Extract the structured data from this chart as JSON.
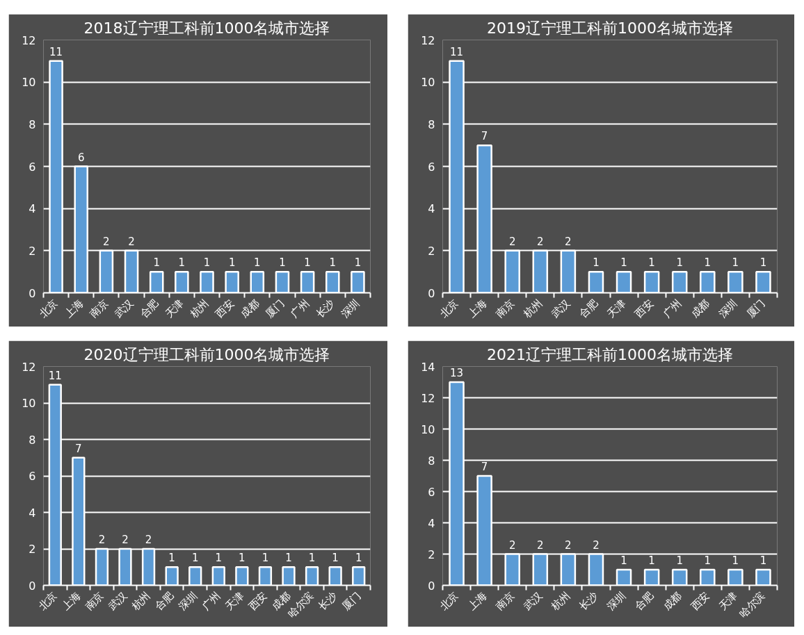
{
  "chart_data": [
    {
      "type": "bar",
      "title": "2018辽宁理工科前1000名城市选择",
      "categories": [
        "北京",
        "上海",
        "南京",
        "武汉",
        "合肥",
        "天津",
        "杭州",
        "西安",
        "成都",
        "厦门",
        "广州",
        "长沙",
        "深圳"
      ],
      "values": [
        11,
        6,
        2,
        2,
        1,
        1,
        1,
        1,
        1,
        1,
        1,
        1,
        1
      ],
      "color": "#5b9bd5",
      "ylim": [
        0,
        12
      ],
      "yticks": [
        0,
        2,
        4,
        6,
        8,
        10,
        12
      ],
      "grid": "y",
      "data_labels": true
    },
    {
      "type": "bar",
      "title": "2019辽宁理工科前1000名城市选择",
      "categories": [
        "北京",
        "上海",
        "南京",
        "杭州",
        "武汉",
        "合肥",
        "天津",
        "西安",
        "广州",
        "成都",
        "深圳",
        "厦门"
      ],
      "values": [
        11,
        7,
        2,
        2,
        2,
        1,
        1,
        1,
        1,
        1,
        1,
        1
      ],
      "color": "#5b9bd5",
      "ylim": [
        0,
        12
      ],
      "yticks": [
        0,
        2,
        4,
        6,
        8,
        10,
        12
      ],
      "grid": "y",
      "data_labels": true
    },
    {
      "type": "bar",
      "title": "2020辽宁理工科前1000名城市选择",
      "categories": [
        "北京",
        "上海",
        "南京",
        "武汉",
        "杭州",
        "合肥",
        "深圳",
        "广州",
        "天津",
        "西安",
        "成都",
        "哈尔滨",
        "长沙",
        "厦门"
      ],
      "values": [
        11,
        7,
        2,
        2,
        2,
        1,
        1,
        1,
        1,
        1,
        1,
        1,
        1,
        1
      ],
      "color": "#5b9bd5",
      "ylim": [
        0,
        12
      ],
      "yticks": [
        0,
        2,
        4,
        6,
        8,
        10,
        12
      ],
      "grid": "y",
      "data_labels": true
    },
    {
      "type": "bar",
      "title": "2021辽宁理工科前1000名城市选择",
      "categories": [
        "北京",
        "上海",
        "南京",
        "武汉",
        "杭州",
        "长沙",
        "深圳",
        "合肥",
        "成都",
        "西安",
        "天津",
        "哈尔滨"
      ],
      "values": [
        13,
        7,
        2,
        2,
        2,
        2,
        1,
        1,
        1,
        1,
        1,
        1
      ],
      "color": "#5b9bd5",
      "ylim": [
        0,
        14
      ],
      "yticks": [
        0,
        2,
        4,
        6,
        8,
        10,
        12,
        14
      ],
      "grid": "y",
      "data_labels": true
    }
  ]
}
